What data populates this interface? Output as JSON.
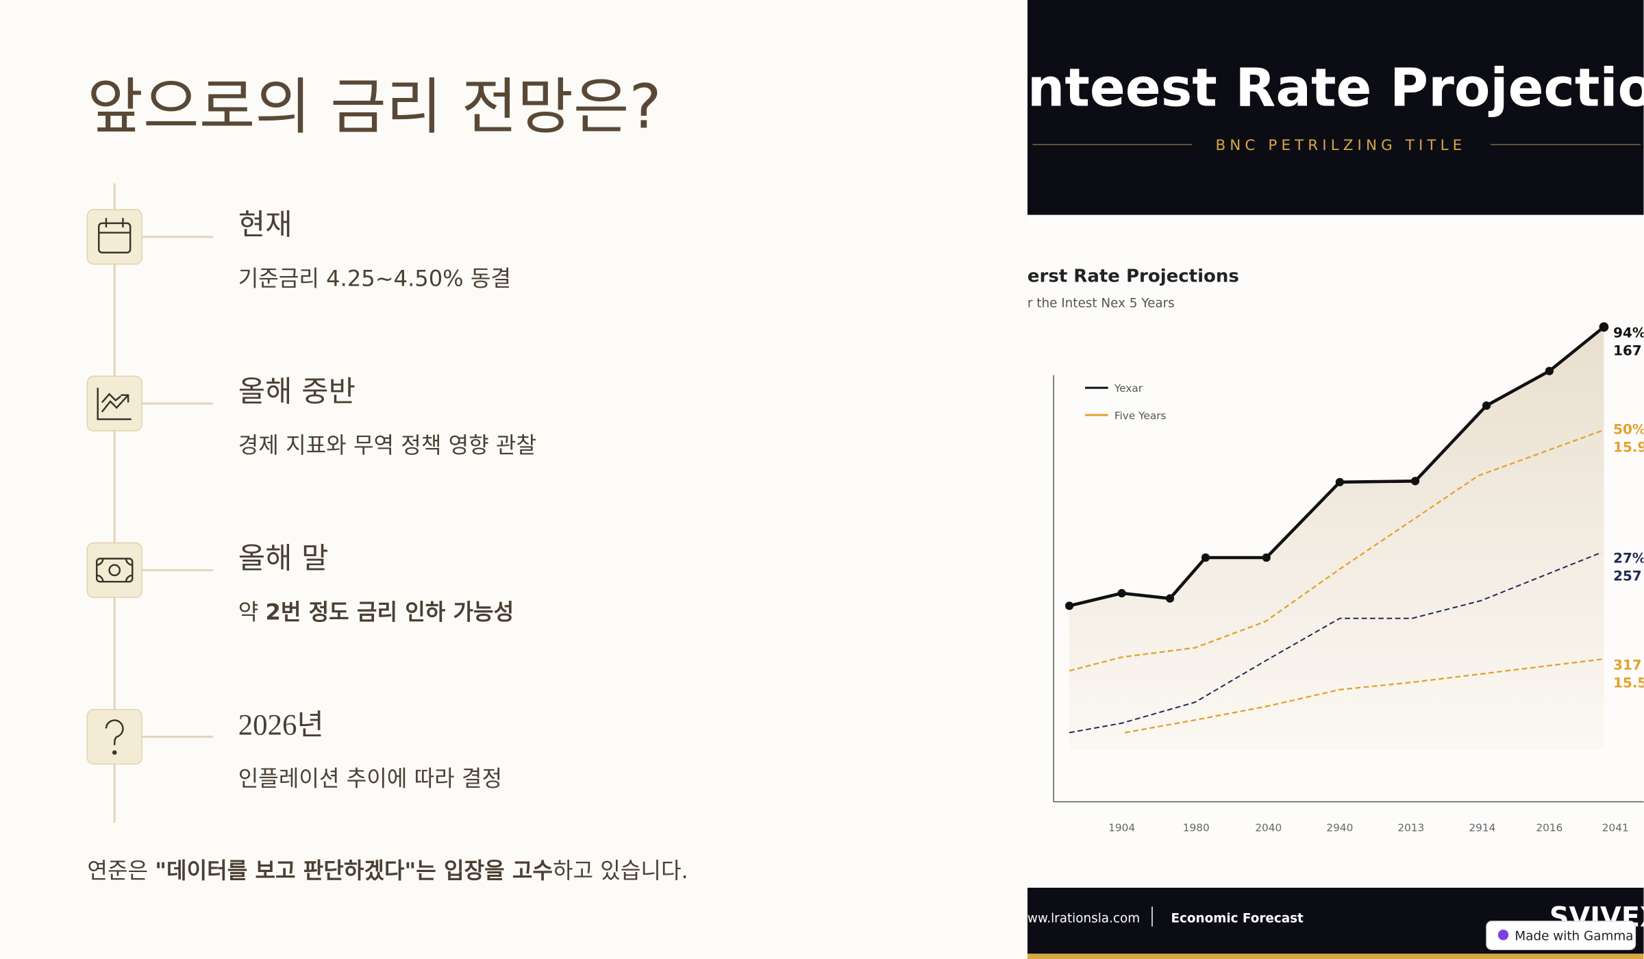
{
  "slide": {
    "title": "앞으로의 금리 전망은?",
    "timeline": [
      {
        "heading": "현재",
        "description": [
          {
            "text": "기준금리 4.25~4.50% 동결",
            "bold": false
          }
        ]
      },
      {
        "heading": "올해 중반",
        "description": [
          {
            "text": "경제 지표와 무역 정책 영향 관찰",
            "bold": false
          }
        ]
      },
      {
        "heading": "올해 말",
        "description": [
          {
            "text": "약 ",
            "bold": false
          },
          {
            "text": "2번 정도 금리 인하 가능성",
            "bold": true
          }
        ]
      },
      {
        "heading": "2026년",
        "description": [
          {
            "text": "인플레이션 추이에 따라 결정",
            "bold": false
          }
        ]
      }
    ],
    "note": [
      {
        "text": "연준은 ",
        "bold": false
      },
      {
        "text": "\"데이터를 보고 판단하겠다\"는 입장을 고수",
        "bold": true
      },
      {
        "text": "하고 있습니다.",
        "bold": false
      }
    ]
  },
  "image": {
    "banner_title": "nteest Rate Projections",
    "banner_subtitle": "BNC PETRILZING TITLE",
    "chart_title": "erst Rate Projections",
    "chart_subtitle": "r the Intest Nex 5 Years",
    "legend": [
      "Yexar",
      "Five Years"
    ],
    "x_labels": [
      "1904",
      "1980",
      "2040",
      "2940",
      "2013",
      "2914",
      "2016",
      "2041"
    ],
    "end_labels": [
      [
        "94%",
        "167"
      ],
      [
        "50%",
        "15.9"
      ],
      [
        "27%",
        "257"
      ],
      [
        "317",
        "15.5"
      ]
    ],
    "footer_url": "ww.lrationsla.com",
    "footer_section": "Economic Forecast",
    "footer_brand": "SVIVEX"
  },
  "badge": "Made with Gamma"
}
